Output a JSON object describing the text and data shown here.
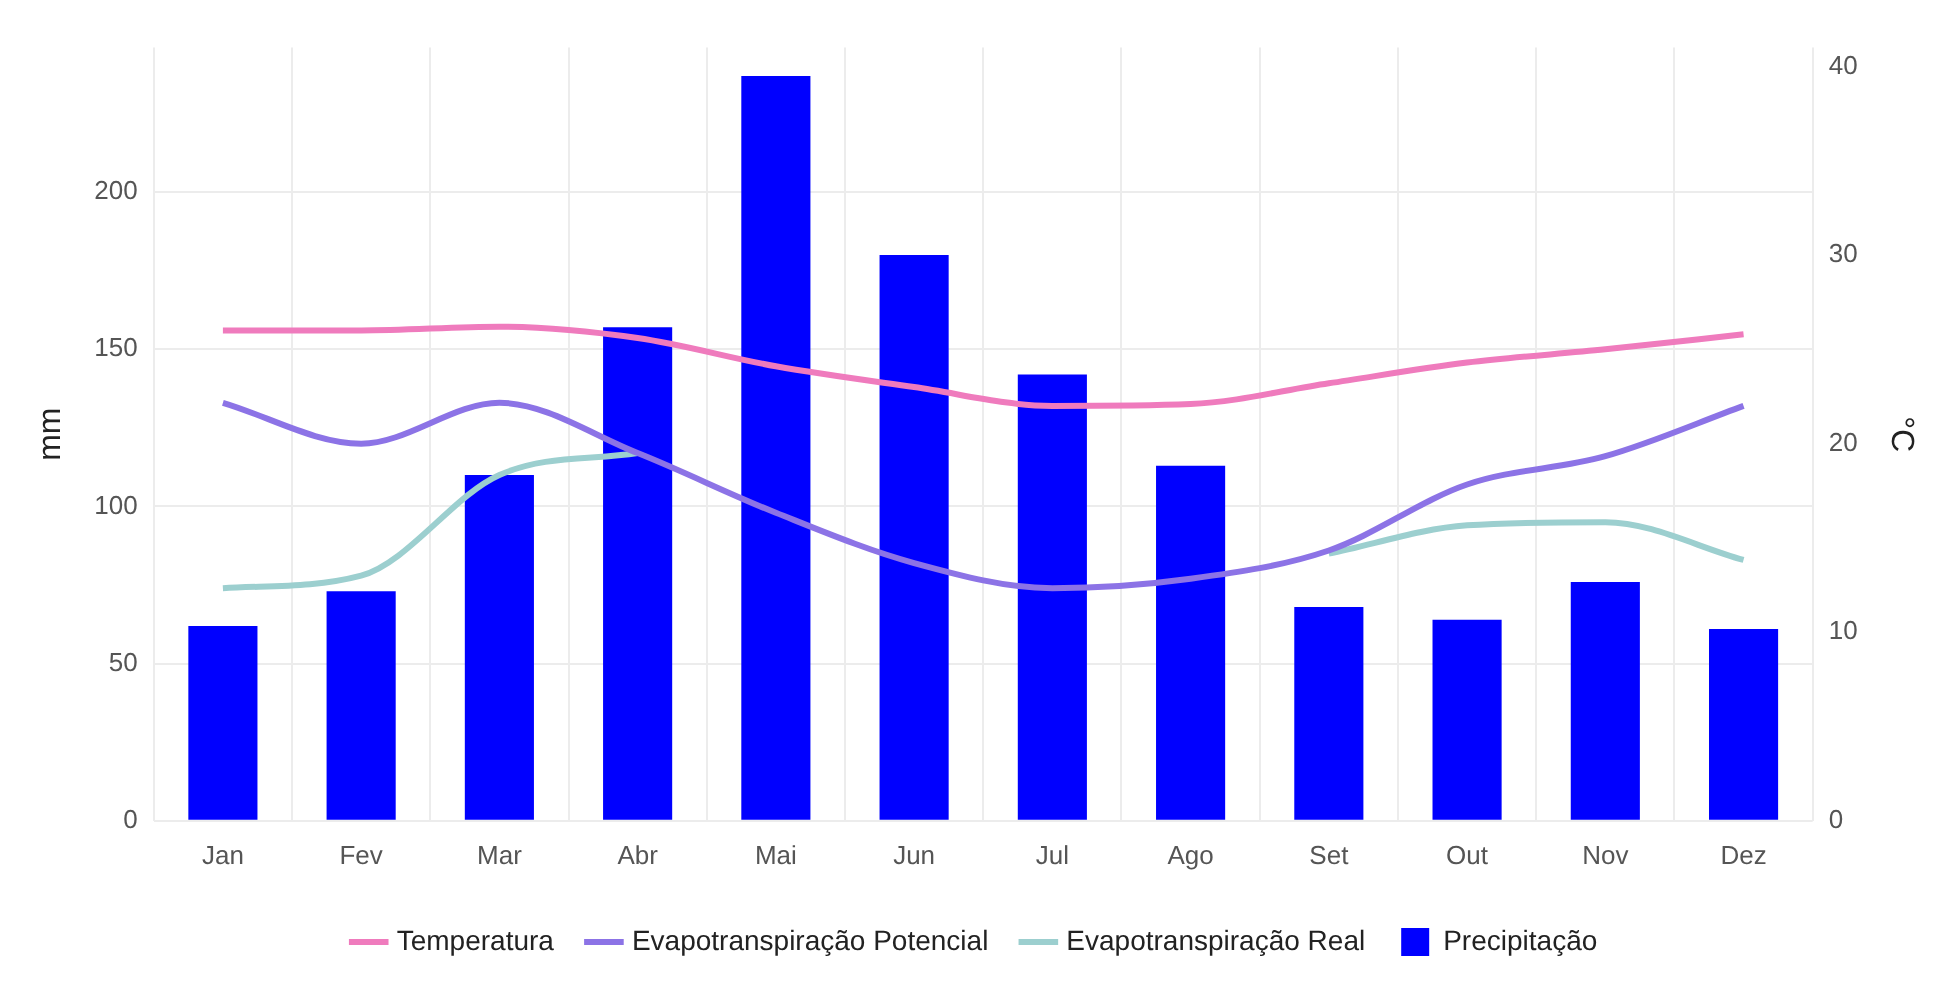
{
  "chart_data": {
    "type": "bar",
    "categories": [
      "Jan",
      "Fev",
      "Mar",
      "Abr",
      "Mai",
      "Jun",
      "Jul",
      "Ago",
      "Set",
      "Out",
      "Nov",
      "Dez"
    ],
    "ylabel": "mm",
    "y2label": "°C",
    "ylim": [
      0,
      246
    ],
    "yticks": [
      0,
      50,
      100,
      150,
      200
    ],
    "y2lim": [
      0,
      41
    ],
    "y2ticks": [
      0,
      10,
      20,
      30,
      40
    ],
    "series": [
      {
        "name": "Temperatura",
        "type": "line",
        "axis": "y2",
        "color": "#ef7bbd",
        "values": [
          26.0,
          26.0,
          26.2,
          25.6,
          24.1,
          23.0,
          22.0,
          22.1,
          23.2,
          24.3,
          25.0,
          25.8
        ]
      },
      {
        "name": "Evapotranspiração Potencial",
        "type": "line",
        "color": "#8c73e6",
        "values": [
          133,
          120,
          133,
          117,
          98,
          82,
          74,
          77,
          86,
          107,
          116,
          132
        ]
      },
      {
        "name": "Evapotranspiração Real",
        "type": "line",
        "color": "#9ccfcf",
        "values": [
          74,
          78,
          110,
          117,
          null,
          null,
          null,
          null,
          85,
          94,
          95,
          83
        ]
      },
      {
        "name": "Precipitação",
        "color": "#0000ff",
        "values": [
          62,
          73,
          110,
          157,
          237,
          180,
          142,
          113,
          68,
          64,
          76,
          61
        ]
      }
    ],
    "grid": true,
    "legend": "bottom",
    "marker": "none",
    "line_style": "solid"
  }
}
